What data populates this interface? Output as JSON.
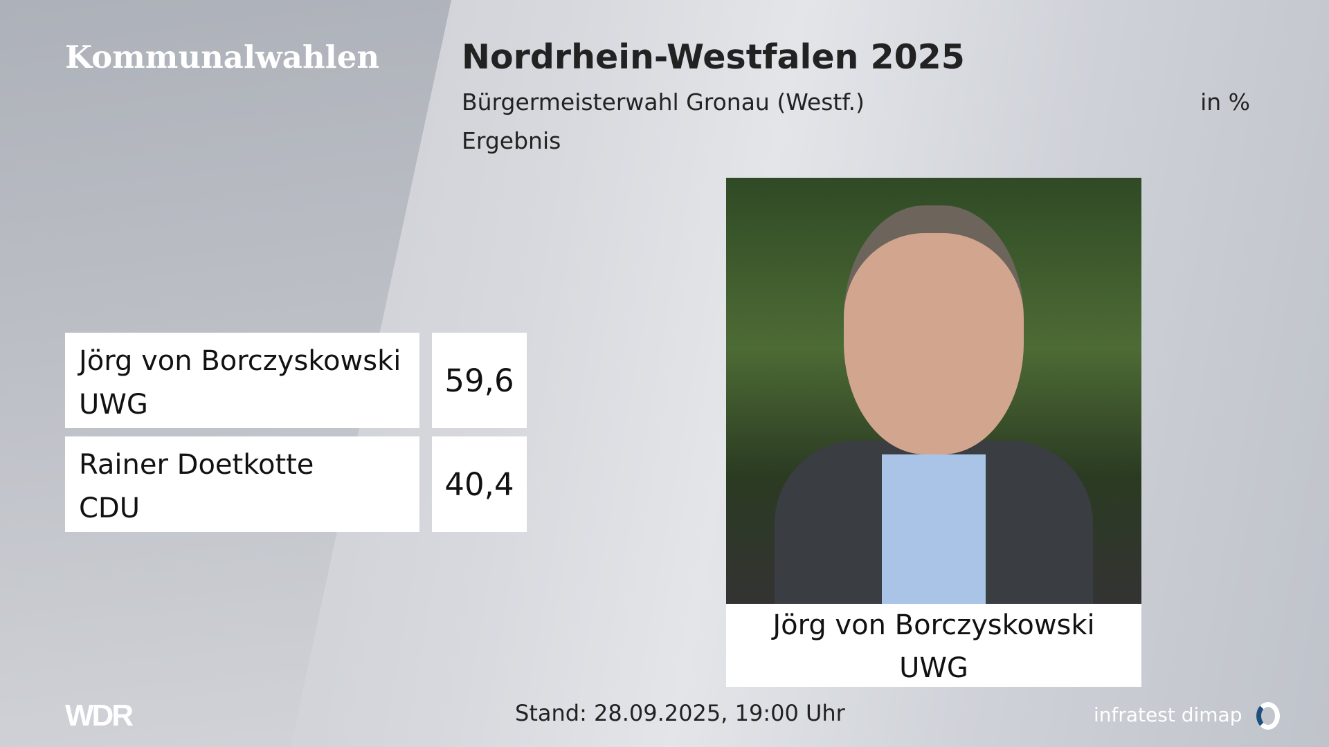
{
  "header": {
    "brand": "Kommunalwahlen",
    "title": "Nordrhein-Westfalen 2025",
    "subtitle": "Bürgermeisterwahl Gronau (Westf.)",
    "unit": "in %",
    "label": "Ergebnis"
  },
  "results": [
    {
      "name": "Jörg von Borczyskowski",
      "party": "UWG",
      "value": "59,6"
    },
    {
      "name": "Rainer Doetkotte",
      "party": "CDU",
      "value": "40,4"
    }
  ],
  "winner": {
    "name": "Jörg von Borczyskowski",
    "party": "UWG"
  },
  "footer": {
    "broadcaster": "WDR",
    "stand": "Stand: 28.09.2025, 19:00 Uhr",
    "source": "infratest dimap"
  }
}
